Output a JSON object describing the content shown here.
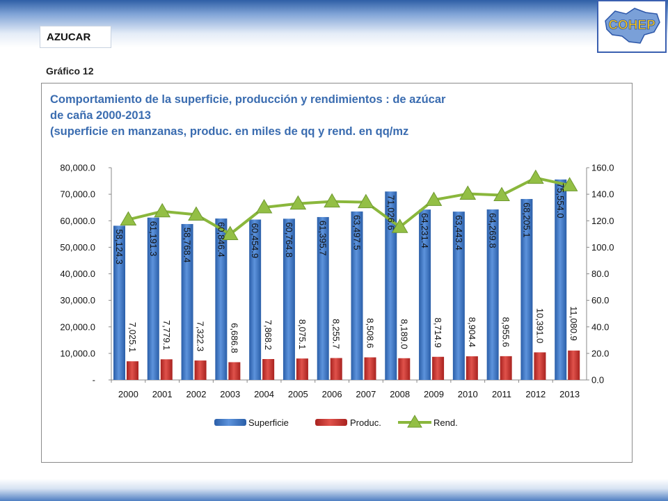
{
  "header": {
    "section_label": "AZUCAR",
    "logo_text": "COHEP",
    "figure_label": "Gráfico 12"
  },
  "colors": {
    "bar_superficie": "#3b74c0",
    "bar_produc": "#c43a36",
    "line_rend": "#8ab73c",
    "title": "#3a6cb0"
  },
  "chart_data": {
    "type": "bar",
    "title_lines": [
      "Comportamiento de la superficie, producción y rendimientos : de azúcar",
      "de caña 2000-2013",
      "(superficie en manzanas, produc. en miles de qq y rend. en qq/mz"
    ],
    "categories": [
      "2000",
      "2001",
      "2002",
      "2003",
      "2004",
      "2005",
      "2006",
      "2007",
      "2008",
      "2009",
      "2010",
      "2011",
      "2012",
      "2013"
    ],
    "series": [
      {
        "name": "Superficie",
        "kind": "bar",
        "axis": "left",
        "values": [
          58124.3,
          61191.3,
          58768.4,
          60846.4,
          60454.9,
          60764.8,
          61395.7,
          63497.5,
          71026.6,
          64231.4,
          63443.4,
          64269.8,
          68205.1,
          75554.0
        ],
        "labels": [
          "58,124.3",
          "61,191.3",
          "58,768.4",
          "60,846.4",
          "60,454.9",
          "60,764.8",
          "61,395.7",
          "63,497.5",
          "71,026.6",
          "64,231.4",
          "63,443.4",
          "64,269.8",
          "68,205.1",
          "75,554.0"
        ]
      },
      {
        "name": "Produc.",
        "kind": "bar",
        "axis": "left",
        "values": [
          7025.1,
          7779.1,
          7322.3,
          6686.8,
          7868.2,
          8075.1,
          8255.7,
          8508.6,
          8189.0,
          8714.9,
          8904.4,
          8955.6,
          10391.0,
          11080.9
        ],
        "labels": [
          "7,025.1",
          "7,779.1",
          "7,322.3",
          "6,686.8",
          "7,868.2",
          "8,075.1",
          "8,255.7",
          "8,508.6",
          "8,189.0",
          "8,714.9",
          "8,904.4",
          "8,955.6",
          "10,391.0",
          "11,080.9"
        ]
      },
      {
        "name": "Rend.",
        "kind": "line",
        "axis": "right",
        "values": [
          120.9,
          127.1,
          124.6,
          109.9,
          130.1,
          132.9,
          134.5,
          134.0,
          115.3,
          135.7,
          140.3,
          139.3,
          152.3,
          146.7
        ]
      }
    ],
    "y_left": {
      "min": 0,
      "max": 80000,
      "step": 10000,
      "tick_labels": [
        "-",
        "10,000.0",
        "20,000.0",
        "30,000.0",
        "40,000.0",
        "50,000.0",
        "60,000.0",
        "70,000.0",
        "80,000.0"
      ]
    },
    "y_right": {
      "min": 0,
      "max": 160,
      "step": 20,
      "tick_labels": [
        "0.0",
        "20.0",
        "40.0",
        "60.0",
        "80.0",
        "100.0",
        "120.0",
        "140.0",
        "160.0"
      ]
    },
    "grid": false,
    "legend_position": "bottom"
  }
}
